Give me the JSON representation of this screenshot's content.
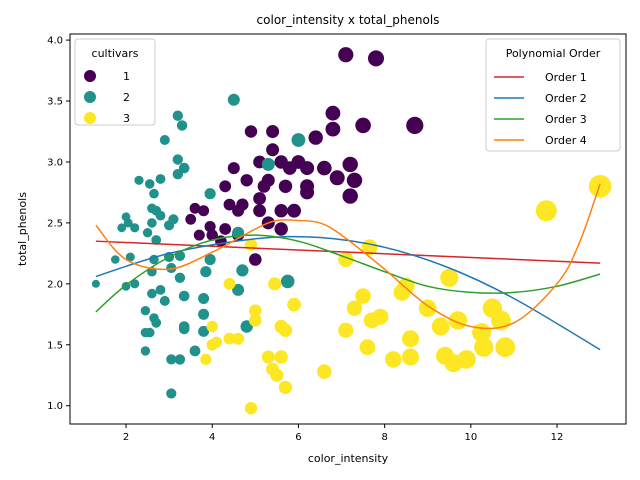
{
  "chart_data": {
    "type": "scatter",
    "title": "color_intensity x total_phenols",
    "xlabel": "color_intensity",
    "ylabel": "total_phenols",
    "xlim": [
      0.7,
      13.6
    ],
    "ylim": [
      0.85,
      4.05
    ],
    "xticks": [
      2,
      4,
      6,
      8,
      10,
      12
    ],
    "yticks": [
      1.0,
      1.5,
      2.0,
      2.5,
      3.0,
      3.5,
      4.0
    ],
    "colors": {
      "1": "#440154",
      "2": "#21918c",
      "3": "#fde725"
    },
    "legend_cultivars": {
      "title": "cultivars",
      "position": "top-left",
      "entries": [
        {
          "label": "1",
          "color": "#440154"
        },
        {
          "label": "2",
          "color": "#21918c"
        },
        {
          "label": "3",
          "color": "#fde725"
        }
      ]
    },
    "legend_poly": {
      "title": "Polynomial Order",
      "position": "top-right",
      "entries": [
        {
          "label": "Order 1",
          "color": "#d62728"
        },
        {
          "label": "Order 2",
          "color": "#1f77b4"
        },
        {
          "label": "Order 3",
          "color": "#2ca02c"
        },
        {
          "label": "Order 4",
          "color": "#ff7f0e"
        }
      ]
    },
    "points": [
      {
        "x": 7.1,
        "y": 3.88,
        "c": 1
      },
      {
        "x": 7.8,
        "y": 3.85,
        "c": 1
      },
      {
        "x": 7.5,
        "y": 3.3,
        "c": 1
      },
      {
        "x": 8.7,
        "y": 3.3,
        "c": 1
      },
      {
        "x": 6.8,
        "y": 3.4,
        "c": 1
      },
      {
        "x": 6.8,
        "y": 3.27,
        "c": 1
      },
      {
        "x": 6.4,
        "y": 3.2,
        "c": 1
      },
      {
        "x": 5.4,
        "y": 3.25,
        "c": 1
      },
      {
        "x": 4.9,
        "y": 3.25,
        "c": 1
      },
      {
        "x": 5.4,
        "y": 3.1,
        "c": 1
      },
      {
        "x": 5.1,
        "y": 3.0,
        "c": 1
      },
      {
        "x": 5.6,
        "y": 3.0,
        "c": 1
      },
      {
        "x": 6.0,
        "y": 3.0,
        "c": 1
      },
      {
        "x": 6.6,
        "y": 2.95,
        "c": 1
      },
      {
        "x": 7.2,
        "y": 2.98,
        "c": 1
      },
      {
        "x": 6.2,
        "y": 2.95,
        "c": 1
      },
      {
        "x": 5.8,
        "y": 2.95,
        "c": 1
      },
      {
        "x": 4.5,
        "y": 2.95,
        "c": 1
      },
      {
        "x": 5.3,
        "y": 2.85,
        "c": 1
      },
      {
        "x": 6.9,
        "y": 2.87,
        "c": 1
      },
      {
        "x": 7.3,
        "y": 2.85,
        "c": 1
      },
      {
        "x": 4.8,
        "y": 2.85,
        "c": 1
      },
      {
        "x": 5.2,
        "y": 2.8,
        "c": 1
      },
      {
        "x": 5.7,
        "y": 2.8,
        "c": 1
      },
      {
        "x": 6.2,
        "y": 2.8,
        "c": 1
      },
      {
        "x": 6.2,
        "y": 2.75,
        "c": 1
      },
      {
        "x": 7.2,
        "y": 2.72,
        "c": 1
      },
      {
        "x": 5.1,
        "y": 2.7,
        "c": 1
      },
      {
        "x": 4.3,
        "y": 2.8,
        "c": 1
      },
      {
        "x": 4.7,
        "y": 2.65,
        "c": 1
      },
      {
        "x": 4.4,
        "y": 2.65,
        "c": 1
      },
      {
        "x": 5.1,
        "y": 2.6,
        "c": 1
      },
      {
        "x": 4.6,
        "y": 2.6,
        "c": 1
      },
      {
        "x": 5.6,
        "y": 2.6,
        "c": 1
      },
      {
        "x": 5.9,
        "y": 2.6,
        "c": 1
      },
      {
        "x": 3.8,
        "y": 2.6,
        "c": 1
      },
      {
        "x": 3.6,
        "y": 2.62,
        "c": 1
      },
      {
        "x": 3.5,
        "y": 2.53,
        "c": 1
      },
      {
        "x": 5.3,
        "y": 2.5,
        "c": 1
      },
      {
        "x": 3.95,
        "y": 2.47,
        "c": 1
      },
      {
        "x": 5.6,
        "y": 2.45,
        "c": 1
      },
      {
        "x": 4.3,
        "y": 2.45,
        "c": 1
      },
      {
        "x": 4.6,
        "y": 2.4,
        "c": 1
      },
      {
        "x": 3.7,
        "y": 2.4,
        "c": 1
      },
      {
        "x": 4.0,
        "y": 2.4,
        "c": 1
      },
      {
        "x": 4.2,
        "y": 2.35,
        "c": 1
      },
      {
        "x": 5.0,
        "y": 2.2,
        "c": 1
      },
      {
        "x": 4.5,
        "y": 3.51,
        "c": 2
      },
      {
        "x": 3.2,
        "y": 3.38,
        "c": 2
      },
      {
        "x": 3.3,
        "y": 3.3,
        "c": 2
      },
      {
        "x": 6.0,
        "y": 3.18,
        "c": 2
      },
      {
        "x": 2.9,
        "y": 3.18,
        "c": 2
      },
      {
        "x": 3.2,
        "y": 3.02,
        "c": 2
      },
      {
        "x": 5.3,
        "y": 2.98,
        "c": 2
      },
      {
        "x": 3.35,
        "y": 2.95,
        "c": 2
      },
      {
        "x": 3.2,
        "y": 2.9,
        "c": 2
      },
      {
        "x": 2.8,
        "y": 2.86,
        "c": 2
      },
      {
        "x": 2.3,
        "y": 2.85,
        "c": 2
      },
      {
        "x": 2.55,
        "y": 2.82,
        "c": 2
      },
      {
        "x": 3.95,
        "y": 2.74,
        "c": 2
      },
      {
        "x": 2.65,
        "y": 2.74,
        "c": 2
      },
      {
        "x": 2.6,
        "y": 2.62,
        "c": 2
      },
      {
        "x": 2.7,
        "y": 2.6,
        "c": 2
      },
      {
        "x": 2.8,
        "y": 2.56,
        "c": 2
      },
      {
        "x": 2.0,
        "y": 2.55,
        "c": 2
      },
      {
        "x": 3.1,
        "y": 2.53,
        "c": 2
      },
      {
        "x": 2.05,
        "y": 2.5,
        "c": 2
      },
      {
        "x": 2.6,
        "y": 2.5,
        "c": 2
      },
      {
        "x": 3.0,
        "y": 2.48,
        "c": 2
      },
      {
        "x": 2.2,
        "y": 2.46,
        "c": 2
      },
      {
        "x": 1.9,
        "y": 2.46,
        "c": 2
      },
      {
        "x": 4.6,
        "y": 2.42,
        "c": 2
      },
      {
        "x": 2.5,
        "y": 2.42,
        "c": 2
      },
      {
        "x": 2.7,
        "y": 2.36,
        "c": 2
      },
      {
        "x": 3.25,
        "y": 2.23,
        "c": 2
      },
      {
        "x": 2.1,
        "y": 2.22,
        "c": 2
      },
      {
        "x": 3.0,
        "y": 2.22,
        "c": 2
      },
      {
        "x": 1.75,
        "y": 2.2,
        "c": 2
      },
      {
        "x": 3.95,
        "y": 2.2,
        "c": 2
      },
      {
        "x": 2.65,
        "y": 2.2,
        "c": 2
      },
      {
        "x": 3.05,
        "y": 2.13,
        "c": 2
      },
      {
        "x": 3.85,
        "y": 2.1,
        "c": 2
      },
      {
        "x": 4.7,
        "y": 2.11,
        "c": 2
      },
      {
        "x": 2.6,
        "y": 2.1,
        "c": 2
      },
      {
        "x": 3.25,
        "y": 2.05,
        "c": 2
      },
      {
        "x": 5.75,
        "y": 2.02,
        "c": 2
      },
      {
        "x": 1.3,
        "y": 2.0,
        "c": 2
      },
      {
        "x": 2.2,
        "y": 2.0,
        "c": 2
      },
      {
        "x": 2.0,
        "y": 1.98,
        "c": 2
      },
      {
        "x": 4.6,
        "y": 1.95,
        "c": 2
      },
      {
        "x": 2.8,
        "y": 1.95,
        "c": 2
      },
      {
        "x": 2.6,
        "y": 1.92,
        "c": 2
      },
      {
        "x": 3.35,
        "y": 1.9,
        "c": 2
      },
      {
        "x": 3.8,
        "y": 1.88,
        "c": 2
      },
      {
        "x": 2.9,
        "y": 1.86,
        "c": 2
      },
      {
        "x": 2.45,
        "y": 1.78,
        "c": 2
      },
      {
        "x": 3.8,
        "y": 1.75,
        "c": 2
      },
      {
        "x": 2.65,
        "y": 1.72,
        "c": 2
      },
      {
        "x": 2.7,
        "y": 1.68,
        "c": 2
      },
      {
        "x": 4.8,
        "y": 1.65,
        "c": 2
      },
      {
        "x": 3.35,
        "y": 1.63,
        "c": 2
      },
      {
        "x": 3.35,
        "y": 1.65,
        "c": 2
      },
      {
        "x": 3.8,
        "y": 1.61,
        "c": 2
      },
      {
        "x": 2.45,
        "y": 1.6,
        "c": 2
      },
      {
        "x": 2.55,
        "y": 1.6,
        "c": 2
      },
      {
        "x": 3.6,
        "y": 1.45,
        "c": 2
      },
      {
        "x": 2.45,
        "y": 1.45,
        "c": 2
      },
      {
        "x": 3.05,
        "y": 1.38,
        "c": 2
      },
      {
        "x": 3.25,
        "y": 1.38,
        "c": 2
      },
      {
        "x": 3.05,
        "y": 1.1,
        "c": 2
      },
      {
        "x": 13.0,
        "y": 2.8,
        "c": 3
      },
      {
        "x": 11.75,
        "y": 2.6,
        "c": 3
      },
      {
        "x": 7.65,
        "y": 2.3,
        "c": 3
      },
      {
        "x": 4.9,
        "y": 2.32,
        "c": 3
      },
      {
        "x": 7.1,
        "y": 2.2,
        "c": 3
      },
      {
        "x": 9.5,
        "y": 2.05,
        "c": 3
      },
      {
        "x": 4.4,
        "y": 2.0,
        "c": 3
      },
      {
        "x": 5.45,
        "y": 2.0,
        "c": 3
      },
      {
        "x": 8.5,
        "y": 1.98,
        "c": 3
      },
      {
        "x": 8.4,
        "y": 1.93,
        "c": 3
      },
      {
        "x": 7.5,
        "y": 1.9,
        "c": 3
      },
      {
        "x": 5.9,
        "y": 1.83,
        "c": 3
      },
      {
        "x": 7.3,
        "y": 1.8,
        "c": 3
      },
      {
        "x": 9.0,
        "y": 1.8,
        "c": 3
      },
      {
        "x": 10.5,
        "y": 1.8,
        "c": 3
      },
      {
        "x": 5.0,
        "y": 1.78,
        "c": 3
      },
      {
        "x": 7.9,
        "y": 1.73,
        "c": 3
      },
      {
        "x": 9.7,
        "y": 1.7,
        "c": 3
      },
      {
        "x": 10.7,
        "y": 1.7,
        "c": 3
      },
      {
        "x": 7.7,
        "y": 1.7,
        "c": 3
      },
      {
        "x": 5.0,
        "y": 1.7,
        "c": 3
      },
      {
        "x": 9.3,
        "y": 1.65,
        "c": 3
      },
      {
        "x": 5.6,
        "y": 1.65,
        "c": 3
      },
      {
        "x": 4.0,
        "y": 1.65,
        "c": 3
      },
      {
        "x": 7.1,
        "y": 1.62,
        "c": 3
      },
      {
        "x": 5.7,
        "y": 1.62,
        "c": 3
      },
      {
        "x": 10.25,
        "y": 1.6,
        "c": 3
      },
      {
        "x": 8.6,
        "y": 1.55,
        "c": 3
      },
      {
        "x": 4.4,
        "y": 1.55,
        "c": 3
      },
      {
        "x": 4.6,
        "y": 1.55,
        "c": 3
      },
      {
        "x": 4.1,
        "y": 1.52,
        "c": 3
      },
      {
        "x": 4.0,
        "y": 1.5,
        "c": 3
      },
      {
        "x": 7.6,
        "y": 1.48,
        "c": 3
      },
      {
        "x": 10.3,
        "y": 1.48,
        "c": 3
      },
      {
        "x": 10.8,
        "y": 1.48,
        "c": 3
      },
      {
        "x": 9.4,
        "y": 1.41,
        "c": 3
      },
      {
        "x": 8.2,
        "y": 1.38,
        "c": 3
      },
      {
        "x": 8.6,
        "y": 1.4,
        "c": 3
      },
      {
        "x": 5.3,
        "y": 1.4,
        "c": 3
      },
      {
        "x": 5.6,
        "y": 1.4,
        "c": 3
      },
      {
        "x": 3.85,
        "y": 1.38,
        "c": 3
      },
      {
        "x": 9.9,
        "y": 1.38,
        "c": 3
      },
      {
        "x": 9.6,
        "y": 1.35,
        "c": 3
      },
      {
        "x": 5.4,
        "y": 1.3,
        "c": 3
      },
      {
        "x": 6.6,
        "y": 1.28,
        "c": 3
      },
      {
        "x": 5.5,
        "y": 1.25,
        "c": 3
      },
      {
        "x": 5.7,
        "y": 1.15,
        "c": 3
      },
      {
        "x": 4.9,
        "y": 0.98,
        "c": 3
      }
    ],
    "curves": {
      "order1": [
        [
          1.3,
          2.35
        ],
        [
          13.0,
          2.17
        ]
      ],
      "order2": [
        [
          1.3,
          2.06
        ],
        [
          3.0,
          2.25
        ],
        [
          5.0,
          2.37
        ],
        [
          6.5,
          2.38
        ],
        [
          8.0,
          2.3
        ],
        [
          9.5,
          2.13
        ],
        [
          11.0,
          1.88
        ],
        [
          13.0,
          1.46
        ]
      ],
      "order3": [
        [
          1.3,
          1.77
        ],
        [
          2.0,
          1.99
        ],
        [
          3.0,
          2.22
        ],
        [
          4.0,
          2.36
        ],
        [
          5.0,
          2.4
        ],
        [
          6.0,
          2.35
        ],
        [
          7.0,
          2.23
        ],
        [
          8.0,
          2.1
        ],
        [
          9.0,
          1.98
        ],
        [
          10.0,
          1.93
        ],
        [
          11.0,
          1.93
        ],
        [
          12.0,
          1.98
        ],
        [
          13.0,
          2.08
        ]
      ],
      "order4": [
        [
          1.3,
          2.48
        ],
        [
          2.0,
          2.2
        ],
        [
          3.0,
          2.12
        ],
        [
          4.0,
          2.26
        ],
        [
          5.0,
          2.45
        ],
        [
          5.5,
          2.52
        ],
        [
          6.0,
          2.52
        ],
        [
          6.5,
          2.5
        ],
        [
          7.0,
          2.4
        ],
        [
          8.0,
          2.12
        ],
        [
          9.0,
          1.82
        ],
        [
          10.0,
          1.65
        ],
        [
          11.0,
          1.68
        ],
        [
          12.0,
          2.0
        ],
        [
          12.5,
          2.32
        ],
        [
          13.0,
          2.82
        ]
      ]
    }
  }
}
